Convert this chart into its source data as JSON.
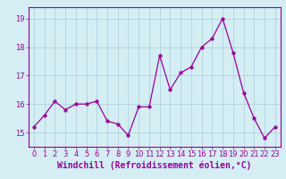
{
  "x": [
    0,
    1,
    2,
    3,
    4,
    5,
    6,
    7,
    8,
    9,
    10,
    11,
    12,
    13,
    14,
    15,
    16,
    17,
    18,
    19,
    20,
    21,
    22,
    23
  ],
  "y": [
    15.2,
    15.6,
    16.1,
    15.8,
    16.0,
    16.0,
    16.1,
    15.4,
    15.3,
    14.9,
    15.9,
    15.9,
    17.7,
    16.5,
    17.1,
    17.3,
    18.0,
    18.3,
    19.0,
    17.8,
    16.4,
    15.5,
    14.8,
    15.2
  ],
  "line_color": "#990099",
  "marker": "o",
  "marker_size": 2.5,
  "xlabel": "Windchill (Refroidissement éolien,°C)",
  "xlabel_color": "#990099",
  "bg_color": "#d4eef4",
  "grid_color": "#aaccdd",
  "ylim": [
    14.5,
    19.4
  ],
  "yticks": [
    15,
    16,
    17,
    18,
    19
  ],
  "xticks": [
    0,
    1,
    2,
    3,
    4,
    5,
    6,
    7,
    8,
    9,
    10,
    11,
    12,
    13,
    14,
    15,
    16,
    17,
    18,
    19,
    20,
    21,
    22,
    23
  ],
  "tick_color": "#990099",
  "tick_fontsize": 6.0,
  "xlabel_fontsize": 7.0,
  "spine_color": "#990099"
}
